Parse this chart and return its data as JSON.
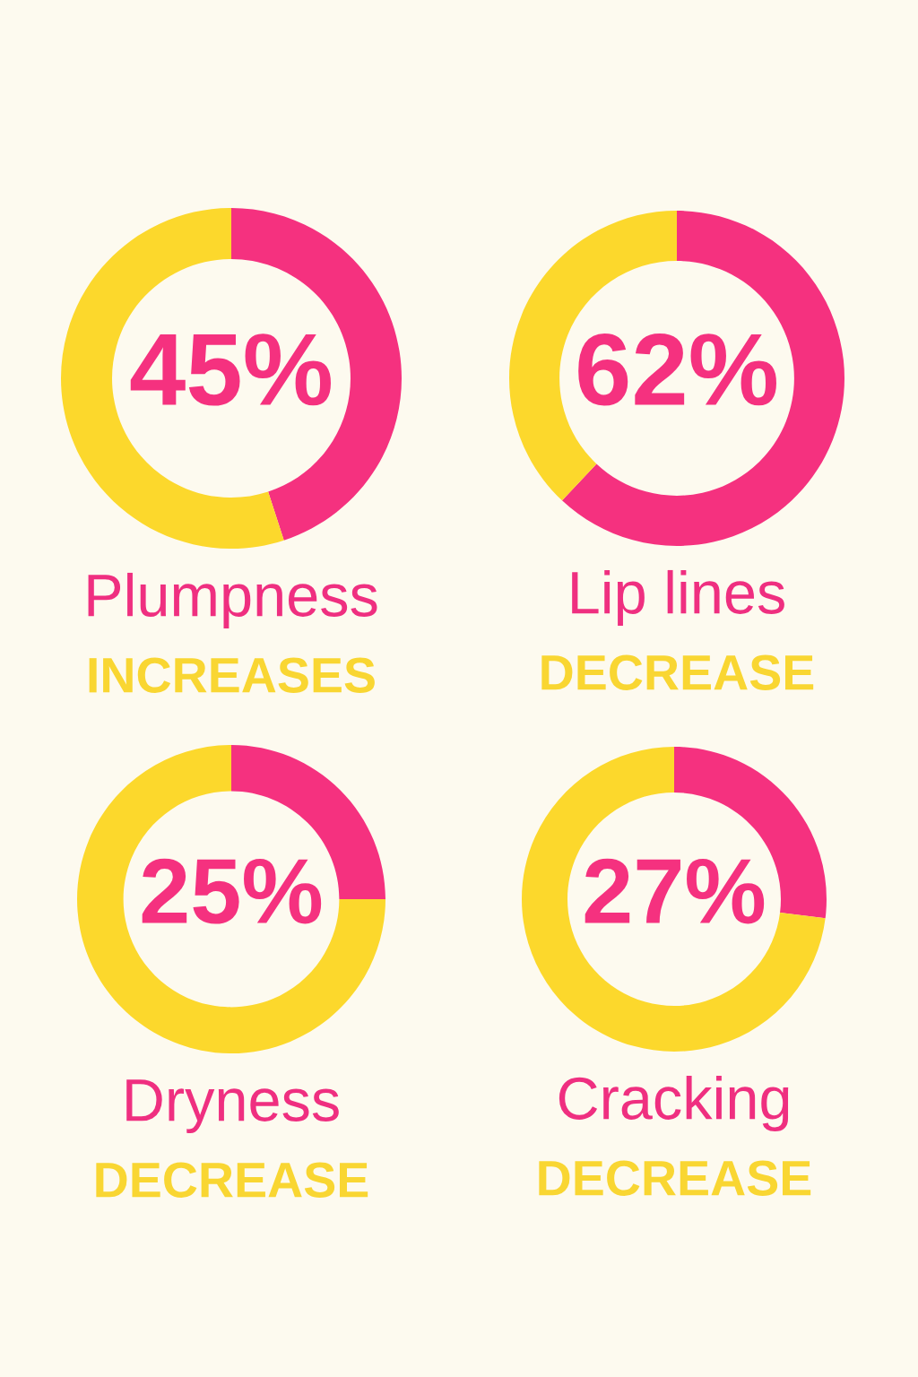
{
  "chart_data": [
    {
      "type": "donut",
      "title": "Plumpness",
      "subtitle": "INCREASES",
      "categories": [
        null,
        null
      ],
      "values": [
        45,
        55
      ],
      "colors": [
        "#f5317f",
        "#fcd82c"
      ],
      "value_labels": [
        "45%",
        null
      ]
    },
    {
      "type": "donut",
      "title": "Lip lines",
      "subtitle": "DECREASE",
      "categories": [
        null,
        null
      ],
      "values": [
        62,
        38
      ],
      "colors": [
        "#f5317f",
        "#fcd82c"
      ],
      "value_labels": [
        "62%",
        null
      ]
    },
    {
      "type": "donut",
      "title": "Dryness",
      "subtitle": "DECREASE",
      "categories": [
        null,
        null
      ],
      "values": [
        25,
        75
      ],
      "colors": [
        "#f5317f",
        "#fcd82c"
      ],
      "value_labels": [
        "25%",
        null
      ]
    },
    {
      "type": "donut",
      "title": "Cracking",
      "subtitle": "DECREASE",
      "categories": [
        null,
        null
      ],
      "values": [
        27,
        73
      ],
      "colors": [
        "#f5317f",
        "#fcd82c"
      ],
      "value_labels": [
        "27%",
        null
      ]
    }
  ]
}
